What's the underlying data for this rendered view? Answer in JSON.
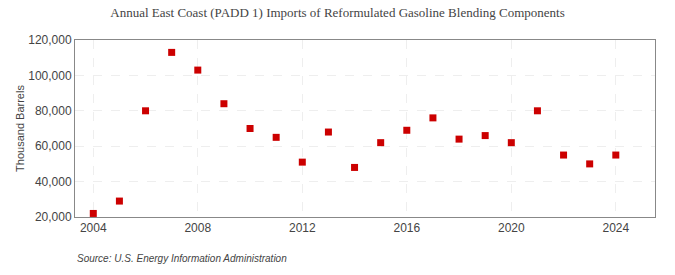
{
  "chart_data": {
    "type": "scatter",
    "title": "Annual East Coast (PADD 1) Imports of Reformulated Gasoline Blending Components",
    "ylabel": "Thousand Barrels",
    "annotations": [
      "Source: U.S. Energy Information Administration"
    ],
    "x": [
      2004,
      2005,
      2006,
      2007,
      2008,
      2009,
      2010,
      2011,
      2012,
      2013,
      2014,
      2015,
      2016,
      2017,
      2018,
      2019,
      2020,
      2021,
      2022,
      2023,
      2024
    ],
    "values": [
      22000,
      29000,
      80000,
      113000,
      103000,
      84000,
      70000,
      65000,
      51000,
      68000,
      48000,
      62000,
      69000,
      76000,
      64000,
      66000,
      62000,
      80000,
      55000,
      50000,
      55000
    ],
    "color": "#cc0000",
    "marker": "square",
    "xlim": [
      2003.3,
      2025.5
    ],
    "xticks": [
      2004,
      2008,
      2012,
      2016,
      2020,
      2024
    ],
    "ylim": [
      20000,
      120000
    ],
    "yticks": [
      {
        "value": 20000,
        "label": "20,000"
      },
      {
        "value": 40000,
        "label": "40,000"
      },
      {
        "value": 60000,
        "label": "60,000"
      },
      {
        "value": 80000,
        "label": "80,000"
      },
      {
        "value": 100000,
        "label": "100,000"
      },
      {
        "value": 120000,
        "label": "120,000"
      }
    ],
    "grid": true
  }
}
